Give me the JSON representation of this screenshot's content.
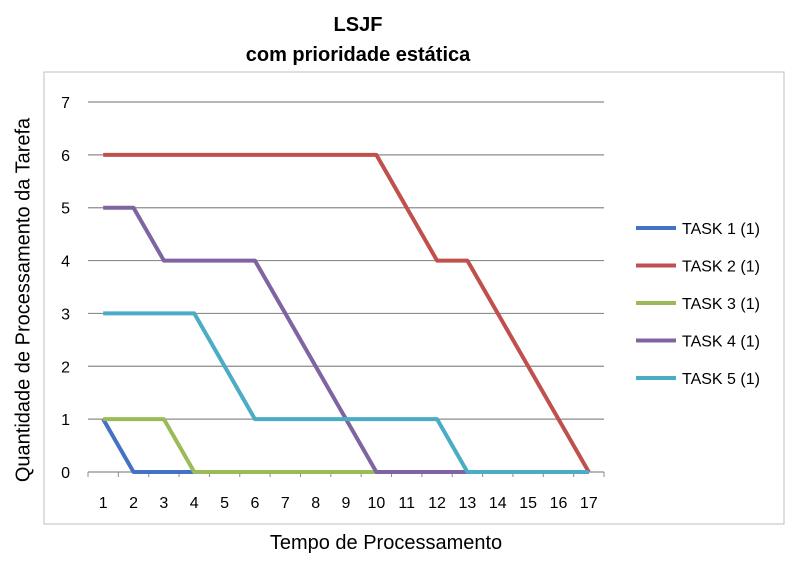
{
  "chart_data": {
    "type": "line",
    "title": "LSJF",
    "subtitle": "com prioridade estática",
    "xlabel": "Tempo de Processamento",
    "ylabel": "Quantidade de Processamento da Tarefa",
    "categories": [
      "1",
      "2",
      "3",
      "4",
      "5",
      "6",
      "7",
      "8",
      "9",
      "10",
      "11",
      "12",
      "13",
      "14",
      "15",
      "16",
      "17"
    ],
    "yticks": [
      "0",
      "1",
      "2",
      "3",
      "4",
      "5",
      "6",
      "7"
    ],
    "ylim": [
      0,
      7
    ],
    "grid": true,
    "legend": "right",
    "series": [
      {
        "name": "TASK 1 (1)",
        "color": "#4472C4",
        "values": [
          1,
          0,
          0,
          0,
          0,
          0,
          0,
          0,
          0,
          0,
          0,
          0,
          0,
          0,
          0,
          0,
          0
        ]
      },
      {
        "name": "TASK 2 (1)",
        "color": "#C0504D",
        "values": [
          6,
          6,
          6,
          6,
          6,
          6,
          6,
          6,
          6,
          6,
          5,
          4,
          4,
          3,
          2,
          1,
          0
        ]
      },
      {
        "name": "TASK 3 (1)",
        "color": "#9BBB59",
        "values": [
          1,
          1,
          1,
          0,
          0,
          0,
          0,
          0,
          0,
          0,
          0,
          0,
          0,
          0,
          0,
          0,
          0
        ]
      },
      {
        "name": "TASK 4 (1)",
        "color": "#8064A2",
        "values": [
          5,
          5,
          4,
          4,
          4,
          4,
          3,
          2,
          1,
          0,
          0,
          0,
          0,
          0,
          0,
          0,
          0
        ]
      },
      {
        "name": "TASK 5 (1)",
        "color": "#4BACC6",
        "values": [
          3,
          3,
          3,
          3,
          2,
          1,
          1,
          1,
          1,
          1,
          1,
          1,
          0,
          0,
          0,
          0,
          0
        ]
      }
    ]
  }
}
